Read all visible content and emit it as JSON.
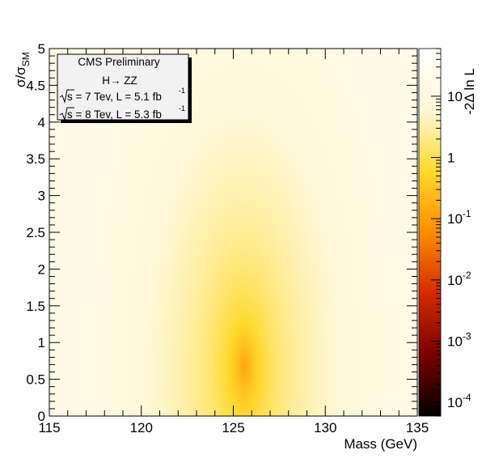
{
  "chart_data": {
    "type": "heatmap",
    "title": "",
    "xlabel": "Mass (GeV)",
    "ylabel": "σ/σ",
    "ylabel_sub": "SM",
    "zlabel": "-2Δ ln L",
    "xlim": [
      115,
      135
    ],
    "ylim": [
      0,
      5
    ],
    "x_ticks": [
      115,
      120,
      125,
      130,
      135
    ],
    "x_tick_labels": [
      "115",
      "120",
      "125",
      "130",
      "135"
    ],
    "y_ticks": [
      0,
      0.5,
      1,
      1.5,
      2,
      2.5,
      3,
      3.5,
      4,
      4.5,
      5
    ],
    "y_tick_labels": [
      "0",
      "0.5",
      "1",
      "1.5",
      "2",
      "2.5",
      "3",
      "3.5",
      "4",
      "4.5",
      "5"
    ],
    "z_scale": "log",
    "z_range": [
      6e-05,
      60
    ],
    "z_ticks": [
      {
        "value": 0.0001,
        "base": "10",
        "exp": "-4"
      },
      {
        "value": 0.001,
        "base": "10",
        "exp": "-3"
      },
      {
        "value": 0.01,
        "base": "10",
        "exp": "-2"
      },
      {
        "value": 0.1,
        "base": "10",
        "exp": "-1"
      },
      {
        "value": 1,
        "base": "1",
        "exp": ""
      },
      {
        "value": 10,
        "base": "10",
        "exp": ""
      }
    ],
    "colormap": [
      "#000000",
      "#7a0000",
      "#d42a00",
      "#ff8c00",
      "#ffd92e",
      "#fff8d8",
      "#ffffff"
    ],
    "best_fit": {
      "mass": 125.6,
      "mu": 0.7
    },
    "grid": false,
    "legend_position": "top-left"
  },
  "legend": {
    "title": "CMS Preliminary",
    "channel": "H→ ZZ",
    "line1": {
      "sqrt": "s",
      "text": " = 7 Tev, L = 5.1 fb",
      "sup": "-1"
    },
    "line2": {
      "sqrt": "s",
      "text": " = 8 Tev, L = 5.3 fb",
      "sup": "-1"
    }
  }
}
